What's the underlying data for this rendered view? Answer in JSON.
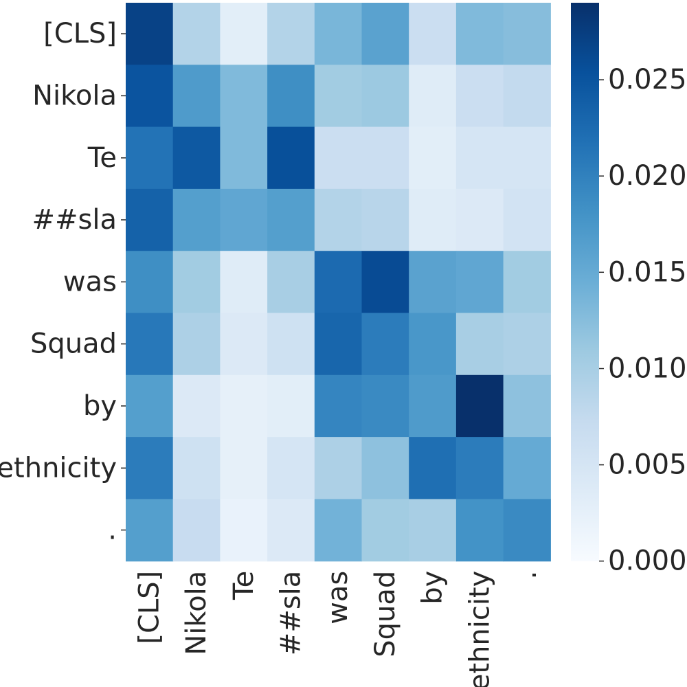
{
  "chart_data": {
    "type": "heatmap",
    "title": "",
    "xlabel": "",
    "ylabel": "",
    "x_tokens": [
      "[CLS]",
      "Nikola",
      "Te",
      "##sla",
      "was",
      "Squad",
      "by",
      "ethnicity",
      "."
    ],
    "y_tokens": [
      "[CLS]",
      "Nikola",
      "Te",
      "##sla",
      "was",
      "Squad",
      "by",
      "ethnicity",
      "."
    ],
    "values": [
      [
        0.027,
        0.009,
        0.003,
        0.009,
        0.0135,
        0.016,
        0.0065,
        0.013,
        0.0125
      ],
      [
        0.025,
        0.017,
        0.013,
        0.0185,
        0.0105,
        0.011,
        0.0035,
        0.0065,
        0.0075
      ],
      [
        0.0215,
        0.0245,
        0.013,
        0.0255,
        0.0065,
        0.0065,
        0.003,
        0.005,
        0.005
      ],
      [
        0.0235,
        0.0165,
        0.0155,
        0.0165,
        0.009,
        0.0085,
        0.0035,
        0.004,
        0.0055
      ],
      [
        0.0185,
        0.0105,
        0.0035,
        0.01,
        0.0225,
        0.026,
        0.016,
        0.0155,
        0.0105
      ],
      [
        0.021,
        0.0095,
        0.004,
        0.006,
        0.023,
        0.0205,
        0.0175,
        0.01,
        0.0095
      ],
      [
        0.0165,
        0.004,
        0.0025,
        0.003,
        0.0195,
        0.019,
        0.017,
        0.029,
        0.012
      ],
      [
        0.0205,
        0.006,
        0.0025,
        0.005,
        0.0095,
        0.012,
        0.022,
        0.0205,
        0.015
      ],
      [
        0.0165,
        0.007,
        0.002,
        0.004,
        0.014,
        0.0105,
        0.01,
        0.018,
        0.019
      ]
    ],
    "colorscale": "Blues",
    "vmin": 0.0,
    "vmax": 0.029,
    "colorbar_ticks": [
      0.0,
      0.005,
      0.01,
      0.015,
      0.02,
      0.025
    ],
    "colorbar_tick_labels": [
      "0.000",
      "0.005",
      "0.010",
      "0.015",
      "0.020",
      "0.025"
    ],
    "colorbar_position": "right",
    "grid": false,
    "colors": {
      "text": "#262626",
      "blues": [
        "#f7fbff",
        "#deebf7",
        "#c6dbef",
        "#9ecae1",
        "#6baed6",
        "#4292c6",
        "#2171b5",
        "#08519c",
        "#08306b"
      ]
    }
  }
}
